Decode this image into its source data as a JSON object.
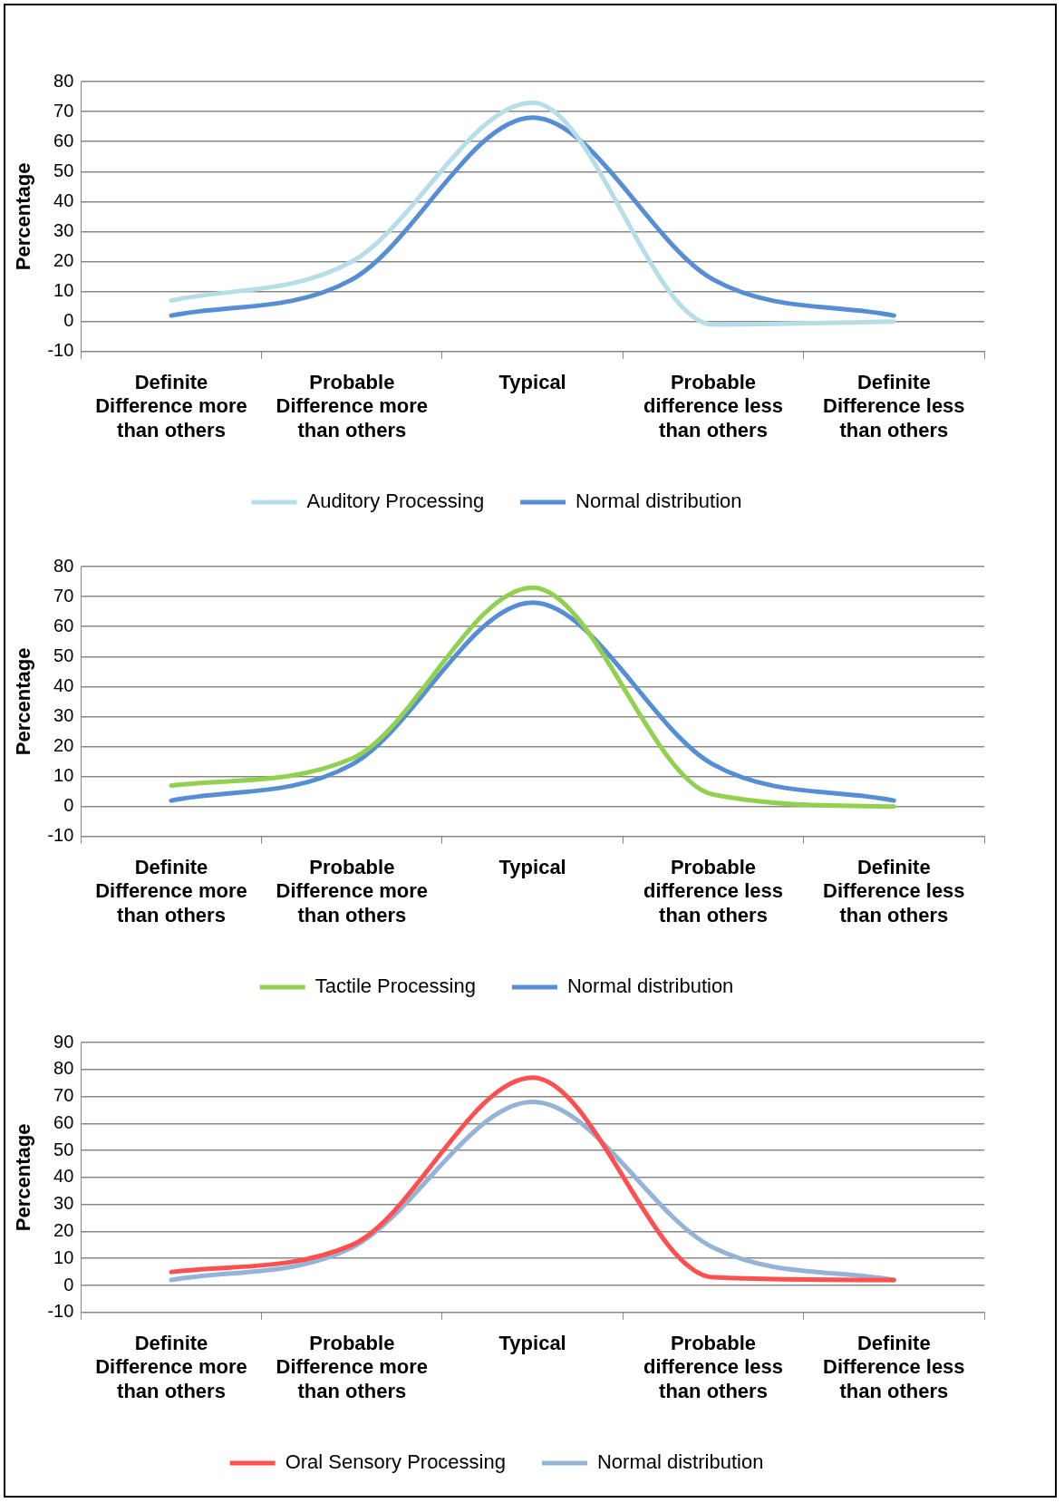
{
  "chart_data": [
    {
      "type": "line",
      "ylabel": "Percentage",
      "categories": [
        "Definite Difference more than others",
        "Probable Difference more than others",
        "Typical",
        "Probable difference less than others",
        "Definite Difference less than others"
      ],
      "series": [
        {
          "name": "Auditory Processing",
          "color": "#b7dde8",
          "values": [
            7,
            20,
            73,
            -1,
            0
          ]
        },
        {
          "name": "Normal distribution",
          "color": "#558ed5",
          "values": [
            2,
            14,
            68,
            14,
            2
          ]
        }
      ],
      "ylim": [
        -10,
        80
      ],
      "yticks": [
        -10,
        0,
        10,
        20,
        30,
        40,
        50,
        60,
        70,
        80
      ],
      "grid": "y",
      "legend": "bottom",
      "marker": "none"
    },
    {
      "type": "line",
      "ylabel": "Percentage",
      "categories": [
        "Definite Difference more than others",
        "Probable Difference more than others",
        "Typical",
        "Probable difference less than others",
        "Definite Difference less than others"
      ],
      "series": [
        {
          "name": "Tactile Processing",
          "color": "#92d050",
          "values": [
            7,
            16,
            73,
            4,
            0
          ]
        },
        {
          "name": "Normal distribution",
          "color": "#558ed5",
          "values": [
            2,
            14,
            68,
            14,
            2
          ]
        }
      ],
      "ylim": [
        -10,
        80
      ],
      "yticks": [
        -10,
        0,
        10,
        20,
        30,
        40,
        50,
        60,
        70,
        80
      ],
      "grid": "y",
      "legend": "bottom",
      "marker": "none"
    },
    {
      "type": "line",
      "ylabel": "Percentage",
      "categories": [
        "Definite Difference more than others",
        "Probable Difference more than others",
        "Typical",
        "Probable difference less than others",
        "Definite Difference less than others"
      ],
      "series": [
        {
          "name": "Oral Sensory Processing",
          "color": "#ff4f4f",
          "values": [
            5,
            15,
            77,
            3,
            2
          ]
        },
        {
          "name": "Normal distribution",
          "color": "#95b3d7",
          "values": [
            2,
            14,
            68,
            14,
            2
          ]
        }
      ],
      "ylim": [
        -10,
        90
      ],
      "yticks": [
        -10,
        0,
        10,
        20,
        30,
        40,
        50,
        60,
        70,
        80,
        90
      ],
      "grid": "y",
      "legend": "bottom",
      "marker": "none"
    }
  ]
}
